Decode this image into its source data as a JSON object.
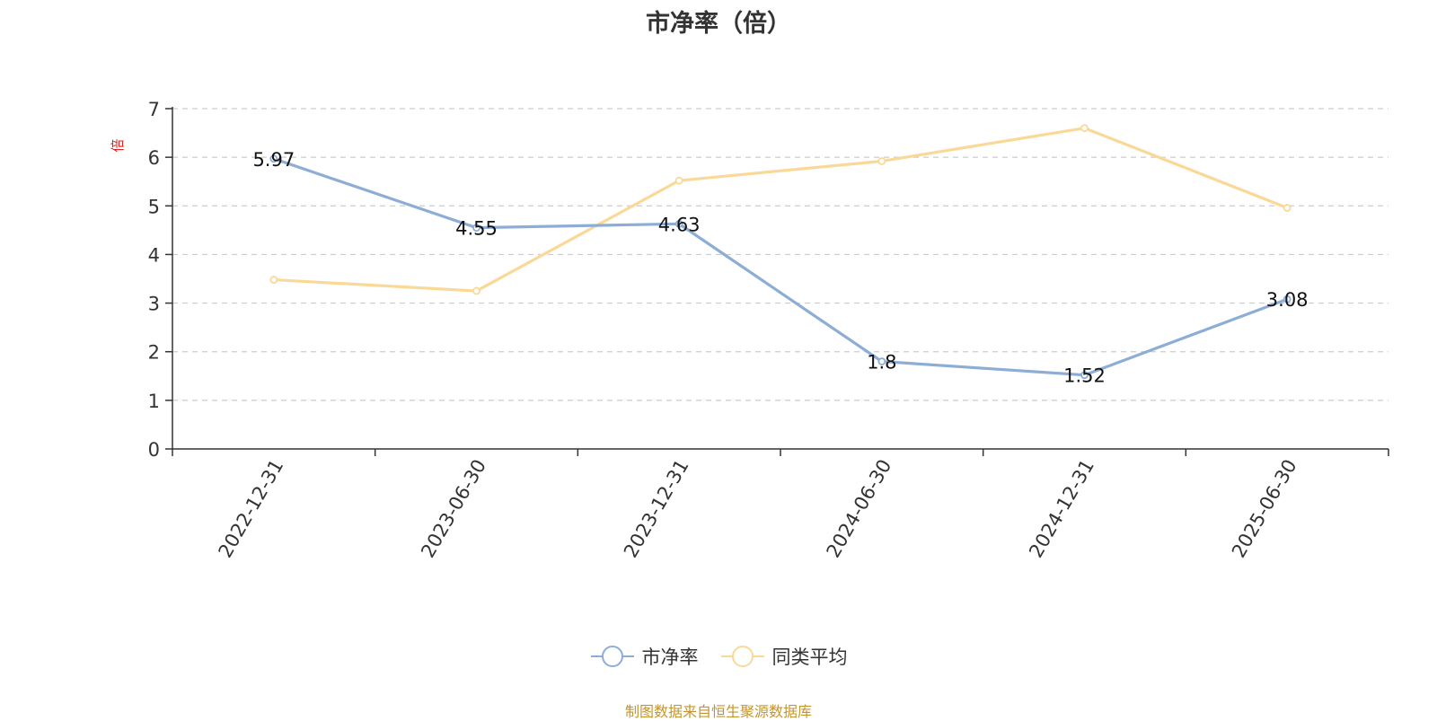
{
  "chart_data": {
    "type": "line",
    "title": "市净率（倍）",
    "ylabel": "倍",
    "xlabel": "",
    "categories": [
      "2022-12-31",
      "2023-06-30",
      "2023-12-31",
      "2024-06-30",
      "2024-12-31",
      "2025-06-30"
    ],
    "ylim": [
      0,
      7
    ],
    "yticks": [
      0,
      1,
      2,
      3,
      4,
      5,
      6,
      7
    ],
    "grid": true,
    "legend_position": "bottom",
    "series": [
      {
        "name": "市净率",
        "color": "#8eadd6",
        "values": [
          5.97,
          4.55,
          4.63,
          1.8,
          1.52,
          3.08
        ],
        "data_labels": [
          "5.97",
          "4.55",
          "4.63",
          "1.8",
          "1.52",
          "3.08"
        ]
      },
      {
        "name": "同类平均",
        "color": "#fad998",
        "values": [
          3.48,
          3.25,
          5.52,
          5.92,
          6.6,
          4.96
        ]
      }
    ],
    "ylabel_color": "#e0201b"
  },
  "source_note": "制图数据来自恒生聚源数据库"
}
